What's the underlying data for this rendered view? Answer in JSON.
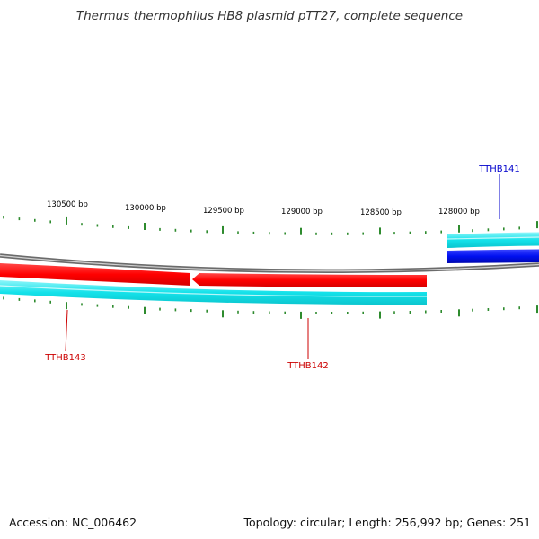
{
  "title": "Thermus thermophilus HB8 plasmid pTT27, complete sequence",
  "footer": {
    "accession": "Accession: NC_006462",
    "summary": "Topology: circular; Length: 256,992 bp; Genes: 251"
  },
  "scale_labels": [
    "130500 bp",
    "130000 bp",
    "129500 bp",
    "129000 bp",
    "128500 bp",
    "128000 bp"
  ],
  "genes": [
    {
      "name": "TTHB141",
      "strand": "reverse",
      "color": "#0000cc"
    },
    {
      "name": "TTHB142",
      "strand": "reverse",
      "color": "#cc0000"
    },
    {
      "name": "TTHB143",
      "strand": "reverse",
      "color": "#cc0000"
    }
  ],
  "colors": {
    "backbone": "#8a8a8a",
    "orf_cyan": "#19e0e8",
    "gene_red": "#ff1a1a",
    "gene_blue": "#0a14e6",
    "tick_green": "#2e8b2e",
    "label_red": "#cc0000",
    "label_blue": "#0000cc"
  }
}
